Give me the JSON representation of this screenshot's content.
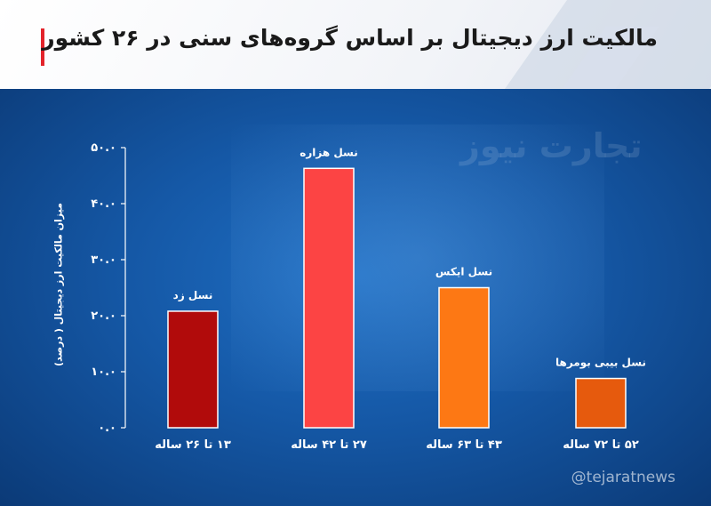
{
  "header": {
    "title": "مالکیت ارز دیجیتال بر اساس گروه‌های سنی در ۲۶ کشور"
  },
  "watermark": "تجارت نیوز",
  "handle": "@tejaratnews",
  "colors": {
    "accent": "#e3242b",
    "background": "#1558a6"
  },
  "chart_data": {
    "type": "bar",
    "title": "",
    "ylabel": "میزان مالکیت ارز دیجیتال ( درصد)",
    "xlabel": "",
    "ylim": [
      0,
      50
    ],
    "ytick_labels": [
      "۰.۰",
      "۱۰.۰",
      "۲۰.۰",
      "۳۰.۰",
      "۴۰.۰",
      "۵۰.۰"
    ],
    "grid": false,
    "categories": [
      "۱۳ تا ۲۶ ساله",
      "۲۷ تا ۴۲ ساله",
      "۴۳ تا ۶۳ ساله",
      "۵۲ تا ۷۲ ساله"
    ],
    "bar_labels": [
      "نسل زد",
      "نسل هزاره",
      "نسل ایکس",
      "نسل بیبی بومرها"
    ],
    "values": [
      20.8,
      46.3,
      25.0,
      8.8
    ],
    "bar_colors": [
      "#b10b0b",
      "#fc4444",
      "#fd7814",
      "#e65a0d"
    ]
  }
}
